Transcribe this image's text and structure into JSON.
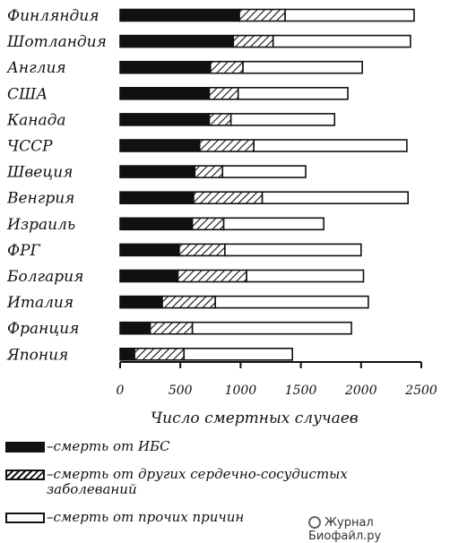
{
  "chart_data": {
    "type": "bar",
    "orientation": "horizontal",
    "stacked": true,
    "categories": [
      "Финляндия",
      "Шотландия",
      "Англия",
      "США",
      "Канада",
      "ЧССР",
      "Швеция",
      "Венгрия",
      "Израиль",
      "ФРГ",
      "Болгария",
      "Италия",
      "Франция",
      "Япония"
    ],
    "series": [
      {
        "name": "смерть от ИБС",
        "pattern": "solid",
        "values": [
          990,
          940,
          750,
          740,
          740,
          660,
          620,
          610,
          600,
          490,
          480,
          350,
          250,
          120
        ]
      },
      {
        "name": "смерть от других сердечно-сосудистых заболеваний",
        "pattern": "hatched",
        "values": [
          380,
          330,
          270,
          240,
          180,
          450,
          230,
          570,
          260,
          380,
          570,
          440,
          350,
          410
        ]
      },
      {
        "name": "смерть от прочих причин",
        "pattern": "empty",
        "values": [
          1070,
          1140,
          990,
          910,
          860,
          1270,
          690,
          1210,
          830,
          1130,
          970,
          1270,
          1320,
          900
        ]
      }
    ],
    "xlabel": "Число смертных случаев",
    "xlim": [
      0,
      2500
    ],
    "xticks": [
      0,
      500,
      1000,
      1500,
      2000,
      2500
    ],
    "grid": false,
    "legend_placement": "bottom"
  },
  "legend": [
    {
      "pattern": "solid",
      "label": "–смерть от ИБС"
    },
    {
      "pattern": "hatched",
      "label": "–смерть от других сердечно-сосудистых",
      "label2": "заболеваний"
    },
    {
      "pattern": "empty",
      "label": "–смерть от прочих причин"
    }
  ],
  "watermark": {
    "icon": "microscope-icon",
    "text": "Журнал Биофайл.ру"
  }
}
